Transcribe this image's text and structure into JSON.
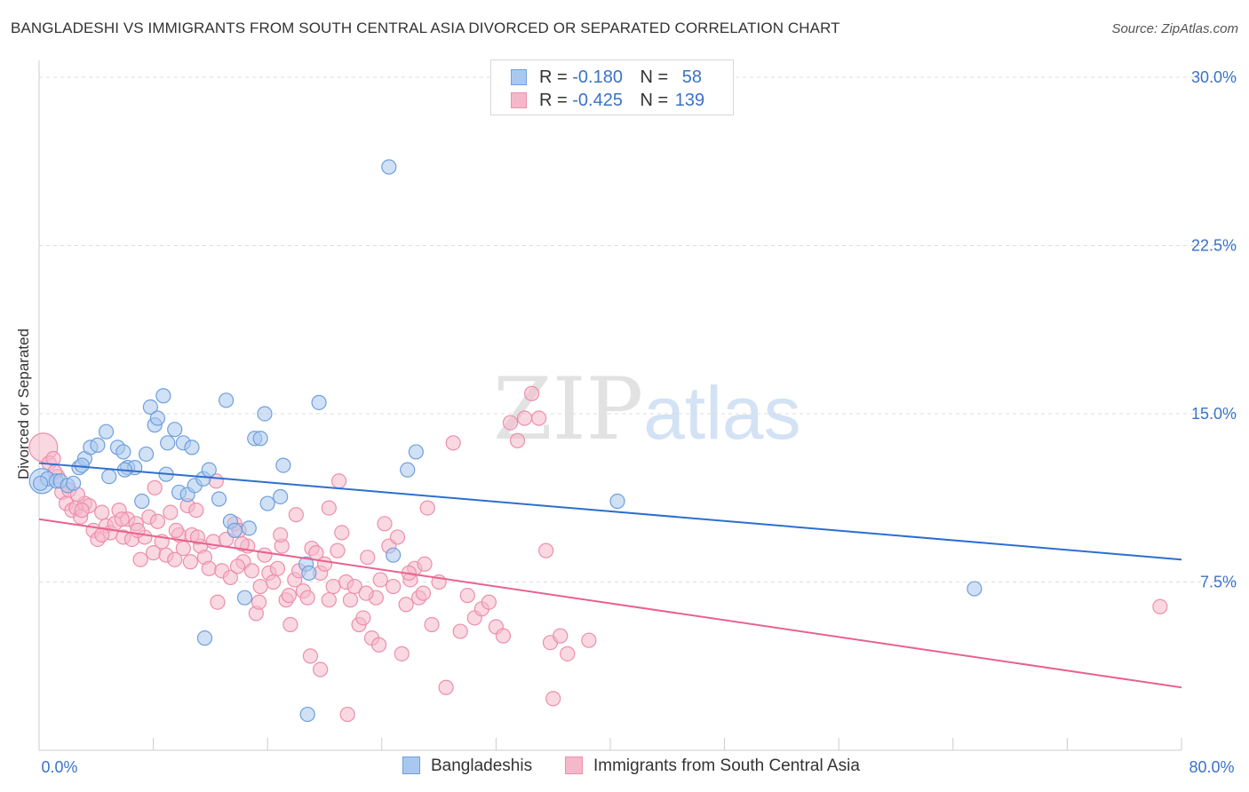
{
  "header": {
    "title": "BANGLADESHI VS IMMIGRANTS FROM SOUTH CENTRAL ASIA DIVORCED OR SEPARATED CORRELATION CHART",
    "source": "Source: ZipAtlas.com"
  },
  "watermark": {
    "zip": "ZIP",
    "atlas": "atlas"
  },
  "legend_top": {
    "rows": [
      {
        "r_label": "R =",
        "r_value": "-0.180",
        "n_label": "N =",
        "n_value": "58"
      },
      {
        "r_label": "R =",
        "r_value": "-0.425",
        "n_label": "N =",
        "n_value": "139"
      }
    ]
  },
  "legend_bottom": {
    "items": [
      "Bangladeshis",
      "Immigrants from South Central Asia"
    ]
  },
  "colors": {
    "blue_fill": "#a9c8ef",
    "blue_stroke": "#6f9fdc",
    "blue_line": "#2d6fce",
    "pink_fill": "#f5b8ca",
    "pink_stroke": "#ec8fab",
    "pink_line": "#e8628f",
    "tick_text": "#3a72c8",
    "grid": "#dddddd"
  },
  "chart_data": {
    "type": "scatter",
    "title": "BANGLADESHI VS IMMIGRANTS FROM SOUTH CENTRAL ASIA DIVORCED OR SEPARATED CORRELATION CHART",
    "xlabel": "",
    "ylabel": "Divorced or Separated",
    "xlim": [
      0,
      80
    ],
    "ylim": [
      0,
      30.75
    ],
    "x_tick_labels": [
      "0.0%",
      "80.0%"
    ],
    "y_ticks": [
      7.5,
      15.0,
      22.5,
      30.0
    ],
    "y_tick_labels": [
      "7.5%",
      "15.0%",
      "22.5%",
      "30.0%"
    ],
    "grid": true,
    "legend": "top-center",
    "series": [
      {
        "name": "Bangladeshis",
        "stats": {
          "R": -0.18,
          "N": 58
        },
        "trend": {
          "x": [
            0,
            80
          ],
          "y": [
            12.8,
            8.5
          ]
        },
        "points": [
          [
            0.2,
            12.0
          ],
          [
            0.6,
            12.1
          ],
          [
            1.2,
            12.0
          ],
          [
            1.5,
            12.0
          ],
          [
            2.0,
            11.8
          ],
          [
            2.4,
            11.9
          ],
          [
            2.8,
            12.6
          ],
          [
            3.2,
            13.0
          ],
          [
            3.6,
            13.5
          ],
          [
            4.1,
            13.6
          ],
          [
            4.7,
            14.2
          ],
          [
            4.9,
            12.2
          ],
          [
            5.5,
            13.5
          ],
          [
            5.9,
            13.3
          ],
          [
            6.2,
            12.6
          ],
          [
            6.7,
            12.6
          ],
          [
            7.2,
            11.1
          ],
          [
            7.5,
            13.2
          ],
          [
            7.8,
            15.3
          ],
          [
            8.1,
            14.5
          ],
          [
            8.3,
            14.8
          ],
          [
            8.7,
            15.8
          ],
          [
            9.0,
            13.7
          ],
          [
            9.5,
            14.3
          ],
          [
            9.8,
            11.5
          ],
          [
            10.1,
            13.7
          ],
          [
            10.4,
            11.4
          ],
          [
            10.7,
            13.5
          ],
          [
            10.9,
            11.8
          ],
          [
            11.5,
            12.1
          ],
          [
            11.9,
            12.5
          ],
          [
            12.6,
            11.2
          ],
          [
            13.1,
            15.6
          ],
          [
            13.4,
            10.2
          ],
          [
            13.7,
            9.8
          ],
          [
            14.4,
            6.8
          ],
          [
            14.7,
            9.9
          ],
          [
            15.1,
            13.9
          ],
          [
            15.5,
            13.9
          ],
          [
            15.8,
            15.0
          ],
          [
            16.9,
            11.3
          ],
          [
            17.1,
            12.7
          ],
          [
            18.7,
            8.3
          ],
          [
            18.9,
            7.9
          ],
          [
            19.6,
            15.5
          ],
          [
            24.5,
            26.0
          ],
          [
            24.8,
            8.7
          ],
          [
            25.8,
            12.5
          ],
          [
            26.4,
            13.3
          ],
          [
            40.5,
            11.1
          ],
          [
            65.5,
            7.2
          ],
          [
            11.6,
            5.0
          ],
          [
            18.8,
            1.6
          ],
          [
            0.1,
            11.9
          ],
          [
            3.0,
            12.7
          ],
          [
            6.0,
            12.5
          ],
          [
            8.9,
            12.3
          ],
          [
            16.0,
            11.0
          ]
        ]
      },
      {
        "name": "Immigrants from South Central Asia",
        "stats": {
          "R": -0.425,
          "N": 139
        },
        "trend": {
          "x": [
            0,
            80
          ],
          "y": [
            10.3,
            2.8
          ]
        },
        "points": [
          [
            0.3,
            13.5
          ],
          [
            0.7,
            12.8
          ],
          [
            1.0,
            13.0
          ],
          [
            1.3,
            12.2
          ],
          [
            1.6,
            11.5
          ],
          [
            1.9,
            11.0
          ],
          [
            2.1,
            11.6
          ],
          [
            2.3,
            10.7
          ],
          [
            2.6,
            10.8
          ],
          [
            2.9,
            10.4
          ],
          [
            3.2,
            11.0
          ],
          [
            3.5,
            10.9
          ],
          [
            3.8,
            9.8
          ],
          [
            4.1,
            9.4
          ],
          [
            4.4,
            10.6
          ],
          [
            4.7,
            10.0
          ],
          [
            5.0,
            9.7
          ],
          [
            5.3,
            10.1
          ],
          [
            5.6,
            10.7
          ],
          [
            5.9,
            9.5
          ],
          [
            6.2,
            10.3
          ],
          [
            6.5,
            9.4
          ],
          [
            6.8,
            10.1
          ],
          [
            7.1,
            8.5
          ],
          [
            7.4,
            9.5
          ],
          [
            7.7,
            10.4
          ],
          [
            8.0,
            8.8
          ],
          [
            8.3,
            10.2
          ],
          [
            8.6,
            9.3
          ],
          [
            8.9,
            8.7
          ],
          [
            9.2,
            10.6
          ],
          [
            9.5,
            8.5
          ],
          [
            9.8,
            9.6
          ],
          [
            10.1,
            9.0
          ],
          [
            10.4,
            10.9
          ],
          [
            10.7,
            9.6
          ],
          [
            11.0,
            10.7
          ],
          [
            11.3,
            9.1
          ],
          [
            11.6,
            8.6
          ],
          [
            11.9,
            8.1
          ],
          [
            12.2,
            9.3
          ],
          [
            12.5,
            6.6
          ],
          [
            12.8,
            8.0
          ],
          [
            13.1,
            9.4
          ],
          [
            13.4,
            7.7
          ],
          [
            13.7,
            10.1
          ],
          [
            14.0,
            9.8
          ],
          [
            14.3,
            8.4
          ],
          [
            14.6,
            9.1
          ],
          [
            14.9,
            8.0
          ],
          [
            15.2,
            6.1
          ],
          [
            15.5,
            7.3
          ],
          [
            15.8,
            8.7
          ],
          [
            16.1,
            7.9
          ],
          [
            16.4,
            7.5
          ],
          [
            16.7,
            8.1
          ],
          [
            17.0,
            9.1
          ],
          [
            17.3,
            6.7
          ],
          [
            17.6,
            5.6
          ],
          [
            17.9,
            7.6
          ],
          [
            18.2,
            8.0
          ],
          [
            18.5,
            7.1
          ],
          [
            18.8,
            6.8
          ],
          [
            19.1,
            9.0
          ],
          [
            19.4,
            8.8
          ],
          [
            19.7,
            7.9
          ],
          [
            20.0,
            8.3
          ],
          [
            20.3,
            6.7
          ],
          [
            20.6,
            7.3
          ],
          [
            20.9,
            8.9
          ],
          [
            21.2,
            9.7
          ],
          [
            21.5,
            7.5
          ],
          [
            21.8,
            6.7
          ],
          [
            22.1,
            7.3
          ],
          [
            22.4,
            5.6
          ],
          [
            22.7,
            5.9
          ],
          [
            23.0,
            8.6
          ],
          [
            23.3,
            5.0
          ],
          [
            23.6,
            6.8
          ],
          [
            23.9,
            7.6
          ],
          [
            24.2,
            10.1
          ],
          [
            24.5,
            9.1
          ],
          [
            24.8,
            7.3
          ],
          [
            25.1,
            9.5
          ],
          [
            25.4,
            4.3
          ],
          [
            25.7,
            6.5
          ],
          [
            26.0,
            7.6
          ],
          [
            26.3,
            8.1
          ],
          [
            26.6,
            6.8
          ],
          [
            26.9,
            7.0
          ],
          [
            27.2,
            10.8
          ],
          [
            27.5,
            5.6
          ],
          [
            28.0,
            7.5
          ],
          [
            28.5,
            2.8
          ],
          [
            29.0,
            13.7
          ],
          [
            29.5,
            5.3
          ],
          [
            30.0,
            6.9
          ],
          [
            30.5,
            5.9
          ],
          [
            31.0,
            6.3
          ],
          [
            31.5,
            6.6
          ],
          [
            32.0,
            5.5
          ],
          [
            32.5,
            5.1
          ],
          [
            33.0,
            14.6
          ],
          [
            33.5,
            13.8
          ],
          [
            34.0,
            14.8
          ],
          [
            34.5,
            15.9
          ],
          [
            35.0,
            14.8
          ],
          [
            35.5,
            8.9
          ],
          [
            35.8,
            4.8
          ],
          [
            36.5,
            5.1
          ],
          [
            37.0,
            4.3
          ],
          [
            38.5,
            4.9
          ],
          [
            36.0,
            2.3
          ],
          [
            19.0,
            4.2
          ],
          [
            19.7,
            3.6
          ],
          [
            21.6,
            1.6
          ],
          [
            12.4,
            12.0
          ],
          [
            21.0,
            12.0
          ],
          [
            20.3,
            10.8
          ],
          [
            78.5,
            6.4
          ],
          [
            1.1,
            12.4
          ],
          [
            2.7,
            11.4
          ],
          [
            5.8,
            10.3
          ],
          [
            9.6,
            9.8
          ],
          [
            13.9,
            8.2
          ],
          [
            17.5,
            6.9
          ],
          [
            22.9,
            7.0
          ],
          [
            23.8,
            4.7
          ],
          [
            27.0,
            8.3
          ],
          [
            15.4,
            6.6
          ],
          [
            16.9,
            9.6
          ],
          [
            10.6,
            8.4
          ],
          [
            4.4,
            9.6
          ],
          [
            3.0,
            10.7
          ],
          [
            6.9,
            9.8
          ],
          [
            8.1,
            11.7
          ],
          [
            11.1,
            9.5
          ],
          [
            14.2,
            9.2
          ],
          [
            18.0,
            10.5
          ],
          [
            25.9,
            7.9
          ]
        ]
      }
    ]
  },
  "chart_data_meta": {}
}
